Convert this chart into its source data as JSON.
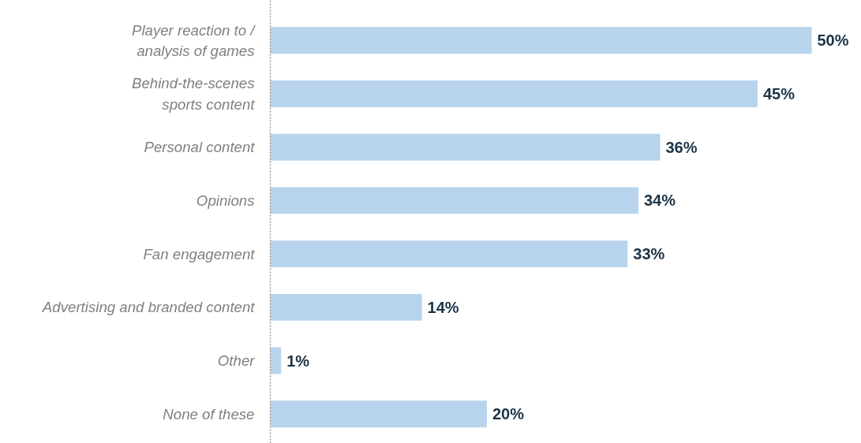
{
  "chart_data": {
    "type": "bar",
    "orientation": "horizontal",
    "categories": [
      "Player reaction to /\nanalysis of games",
      "Behind-the-scenes\nsports content",
      "Personal content",
      "Opinions",
      "Fan engagement",
      "Advertising and branded content",
      "Other",
      "None of these"
    ],
    "values": [
      50,
      45,
      36,
      34,
      33,
      14,
      1,
      20
    ],
    "value_labels": [
      "50%",
      "45%",
      "36%",
      "34%",
      "33%",
      "14%",
      "1%",
      "20%"
    ],
    "color": "#b8d4ec"
  }
}
